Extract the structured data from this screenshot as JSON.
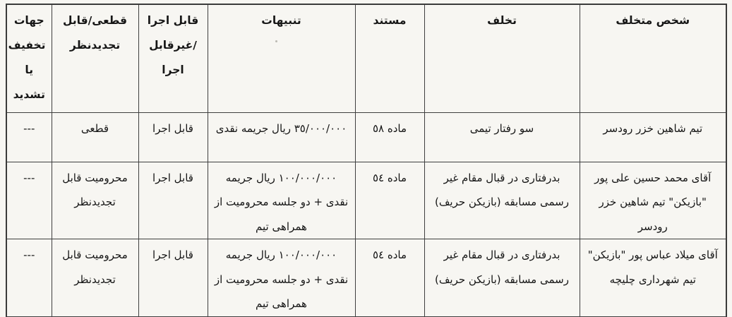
{
  "page": {
    "background": "#f7f6f2",
    "border_color": "#3f3f3f",
    "text_color": "#161616",
    "language": "fa",
    "direction": "rtl"
  },
  "table": {
    "headers": [
      {
        "id": "offender",
        "label": "شخص متخلف"
      },
      {
        "id": "violation",
        "label": "تخلف"
      },
      {
        "id": "reference",
        "label": "مستند"
      },
      {
        "id": "penalties",
        "label": "تنبیهات"
      },
      {
        "id": "executable",
        "label": "قابل اجرا /غیرقابل اجرا"
      },
      {
        "id": "finality",
        "label": "قطعی/قابل تجدیدنظر"
      },
      {
        "id": "mitigation",
        "label": "جهات تخفیف یا تشدید"
      }
    ],
    "rows": [
      {
        "offender": "تیم شاهین خزر رودسر",
        "violation": "سو رفتار تیمی",
        "reference": "ماده ٥٨",
        "penalties": "٣٥/٠٠٠/٠٠٠ ریال جریمه نقدی",
        "executable": "قابل اجرا",
        "finality": "قطعی",
        "mitigation": "---"
      },
      {
        "offender": "آقای محمد حسین علی پور \"بازیکن\" تیم شاهین خزر رودسر",
        "violation": "بدرفتاری در قبال مقام غیر رسمی مسابقه (بازیکن حریف)",
        "reference": "ماده ٥٤",
        "penalties": "١٠٠/٠٠٠/٠٠٠ ریال جریمه نقدی + دو جلسه محرومیت از همراهی تیم",
        "executable": "قابل اجرا",
        "finality": "محرومیت قابل تجدیدنظر",
        "mitigation": "---"
      },
      {
        "offender": "آقای میلاد عباس پور \"بازیکن\" تیم شهرداری چلیچه",
        "violation": "بدرفتاری در قبال مقام غیر رسمی مسابقه (بازیکن حریف)",
        "reference": "ماده ٥٤",
        "penalties": "١٠٠/٠٠٠/٠٠٠ ریال جریمه نقدی + دو جلسه محرومیت از همراهی تیم",
        "executable": "قابل اجرا",
        "finality": "محرومیت قابل تجدیدنظر",
        "mitigation": "---"
      }
    ]
  }
}
